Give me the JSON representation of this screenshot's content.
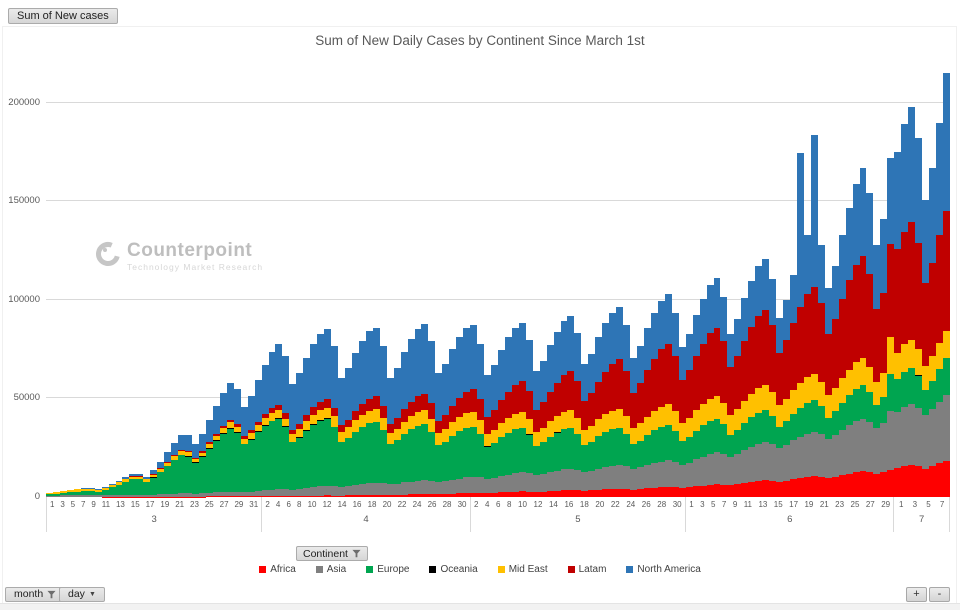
{
  "field_button_label": "Sum of New cases",
  "continent_button_label": "Continent",
  "month_button_label": "month",
  "day_button_label": "day",
  "zoom_in_label": "+",
  "zoom_out_label": "-",
  "watermark": {
    "name": "Counterpoint",
    "tagline": "Technology Market Research"
  },
  "chart_data": {
    "type": "bar",
    "stacked": true,
    "title": "Sum of New Daily Cases by Continent Since March 1st",
    "xlabel": "month / day",
    "ylabel": "Sum of New cases",
    "ylim": [
      0,
      218000
    ],
    "yticks": [
      0,
      50000,
      100000,
      150000,
      200000
    ],
    "grid": true,
    "legend_position": "bottom",
    "total_days": 130,
    "months": [
      {
        "label": "3",
        "days": 31,
        "tick_labels": [
          "1",
          "3",
          "5",
          "7",
          "9",
          "11",
          "13",
          "15",
          "17",
          "19",
          "21",
          "23",
          "25",
          "27",
          "29",
          "31"
        ]
      },
      {
        "label": "4",
        "days": 30,
        "tick_labels": [
          "2",
          "4",
          "6",
          "8",
          "10",
          "12",
          "14",
          "16",
          "18",
          "20",
          "22",
          "24",
          "26",
          "28",
          "30"
        ]
      },
      {
        "label": "5",
        "days": 31,
        "tick_labels": [
          "2",
          "4",
          "6",
          "8",
          "10",
          "12",
          "14",
          "16",
          "18",
          "20",
          "22",
          "24",
          "26",
          "28",
          "30"
        ]
      },
      {
        "label": "6",
        "days": 30,
        "tick_labels": [
          "1",
          "3",
          "5",
          "7",
          "9",
          "11",
          "13",
          "15",
          "17",
          "19",
          "21",
          "23",
          "25",
          "27",
          "29"
        ]
      },
      {
        "label": "7",
        "days": 8,
        "tick_labels": [
          "1",
          "3",
          "5",
          "7"
        ]
      }
    ],
    "series": [
      {
        "name": "Africa",
        "color": "#fe0000",
        "values": [
          18,
          22,
          26,
          30,
          33,
          36,
          37,
          36,
          46,
          57,
          68,
          78,
          89,
          91,
          90,
          114,
          141,
          169,
          197,
          222,
          229,
          225,
          248,
          276,
          302,
          326,
          344,
          336,
          315,
          356,
          403,
          449,
          492,
          527,
          521,
          495,
          551,
          615,
          677,
          734,
          780,
          764,
          720,
          792,
          877,
          957,
          1029,
          1085,
          1057,
          990,
          1088,
          1202,
          1309,
          1409,
          1483,
          1443,
          1350,
          1504,
          1683,
          1854,
          2014,
          2140,
          2100,
          2000,
          2100,
          2300,
          2500,
          2700,
          2800,
          2700,
          2500,
          2700,
          3000,
          3200,
          3400,
          3500,
          3400,
          3200,
          3400,
          3700,
          3900,
          4100,
          4300,
          4100,
          3800,
          4100,
          4400,
          4700,
          4900,
          5100,
          4900,
          4500,
          4900,
          5400,
          5800,
          6200,
          6500,
          6300,
          5900,
          6400,
          7000,
          7600,
          8100,
          8500,
          8200,
          7700,
          8300,
          9000,
          9600,
          10200,
          10600,
          10200,
          9500,
          10200,
          11100,
          11900,
          12600,
          13100,
          12600,
          11700,
          12600,
          13700,
          14700,
          15600,
          16200,
          15600,
          14400,
          15700,
          17200,
          18500
        ]
      },
      {
        "name": "Asia",
        "color": "#7f7f7f",
        "values": [
          630,
          690,
          750,
          810,
          860,
          900,
          870,
          810,
          870,
          950,
          1020,
          1080,
          1120,
          1070,
          990,
          1110,
          1260,
          1400,
          1530,
          1640,
          1610,
          1530,
          1690,
          1880,
          2060,
          2230,
          2350,
          2300,
          2160,
          2400,
          2690,
          2960,
          3210,
          3410,
          3340,
          3150,
          3490,
          3890,
          4270,
          4620,
          4890,
          4790,
          4500,
          4830,
          5230,
          5590,
          5910,
          6110,
          5860,
          5400,
          5750,
          6170,
          6530,
          6840,
          7030,
          6690,
          6100,
          6600,
          7100,
          7500,
          7900,
          8200,
          7800,
          7200,
          7700,
          8300,
          8900,
          9400,
          9700,
          9300,
          8600,
          9100,
          9700,
          10200,
          10700,
          10900,
          10400,
          9500,
          10000,
          10700,
          11300,
          11700,
          12000,
          11400,
          10400,
          11000,
          11800,
          12500,
          13100,
          13500,
          12800,
          11700,
          12600,
          13700,
          14700,
          15600,
          16200,
          15600,
          14400,
          15400,
          16700,
          17800,
          18800,
          19400,
          18600,
          17100,
          18300,
          19700,
          20900,
          22000,
          22600,
          21600,
          19800,
          21200,
          22900,
          24400,
          25700,
          26600,
          25400,
          23400,
          25000,
          29900,
          28500,
          30000,
          30900,
          29400,
          27000,
          28800,
          31000,
          33000
        ]
      },
      {
        "name": "Europe",
        "color": "#00a550",
        "values": [
          700,
          920,
          1220,
          1530,
          1840,
          2100,
          2050,
          1720,
          2640,
          3840,
          5150,
          6500,
          7700,
          7750,
          6630,
          8620,
          11300,
          14100,
          16900,
          19200,
          18700,
          15600,
          18300,
          22200,
          25900,
          29400,
          32000,
          30000,
          24200,
          26400,
          29800,
          32600,
          34700,
          35700,
          31600,
          24200,
          26100,
          29200,
          31700,
          33400,
          34000,
          29900,
          22600,
          24300,
          27000,
          29100,
          30600,
          30900,
          27000,
          20300,
          21900,
          24400,
          26400,
          27800,
          28300,
          24800,
          18700,
          20000,
          22200,
          23900,
          25000,
          25100,
          21900,
          16400,
          17600,
          19600,
          21200,
          22200,
          22500,
          19700,
          14800,
          16000,
          17800,
          19300,
          20300,
          20600,
          18100,
          13700,
          14700,
          16400,
          17700,
          18600,
          18900,
          16500,
          12500,
          13500,
          15200,
          16600,
          17600,
          18000,
          15900,
          12100,
          13100,
          14600,
          15800,
          16700,
          17000,
          14900,
          11300,
          12300,
          13800,
          15000,
          15900,
          16300,
          14400,
          10900,
          11900,
          13400,
          14700,
          15700,
          16100,
          14300,
          10900,
          12000,
          13700,
          15200,
          16300,
          16900,
          15200,
          11700,
          12900,
          18800,
          16400,
          17800,
          18500,
          16600,
          12900,
          14500,
          16800,
          18900
        ]
      },
      {
        "name": "Oceania",
        "color": "#000000",
        "values": [
          10,
          12,
          14,
          16,
          18,
          20,
          22,
          30,
          35,
          40,
          45,
          50,
          55,
          60,
          100,
          130,
          160,
          190,
          220,
          250,
          280,
          350,
          370,
          390,
          410,
          430,
          450,
          440,
          450,
          430,
          410,
          390,
          370,
          350,
          330,
          300,
          270,
          240,
          210,
          190,
          170,
          150,
          120,
          110,
          100,
          90,
          80,
          70,
          65,
          60,
          55,
          50,
          45,
          40,
          35,
          32,
          30,
          28,
          27,
          26,
          25,
          25,
          25,
          25,
          24,
          23,
          22,
          21,
          20,
          20,
          25,
          25,
          24,
          24,
          23,
          23,
          22,
          25,
          24,
          24,
          23,
          23,
          22,
          22,
          20,
          20,
          20,
          20,
          20,
          20,
          20,
          20,
          20,
          20,
          20,
          20,
          20,
          20,
          20,
          20,
          20,
          22,
          22,
          24,
          24,
          25,
          25,
          26,
          26,
          27,
          27,
          28,
          25,
          26,
          27,
          28,
          29,
          30,
          30,
          30,
          32,
          34,
          36,
          38,
          40,
          42,
          40,
          44,
          48,
          52
        ]
      },
      {
        "name": "Mid East",
        "color": "#ffc000",
        "values": [
          810,
          870,
          950,
          1020,
          1080,
          1120,
          1070,
          990,
          1060,
          1150,
          1220,
          1290,
          1330,
          1270,
          1170,
          1300,
          1460,
          1600,
          1740,
          1850,
          1810,
          1710,
          1910,
          2140,
          2350,
          2560,
          2720,
          2670,
          2520,
          2820,
          3170,
          3500,
          3820,
          4070,
          4000,
          3780,
          4120,
          4530,
          4900,
          5240,
          5490,
          5310,
          4950,
          5260,
          5640,
          5970,
          6250,
          6420,
          6100,
          5580,
          5910,
          6310,
          6650,
          6940,
          7090,
          6710,
          6100,
          6400,
          6800,
          7200,
          7500,
          7600,
          7100,
          6500,
          6800,
          7300,
          7700,
          8000,
          8200,
          7700,
          7000,
          7400,
          7900,
          8300,
          8700,
          8900,
          8400,
          7700,
          8100,
          8600,
          9100,
          9400,
          9600,
          9100,
          8300,
          8800,
          9300,
          9800,
          10200,
          10500,
          9900,
          9000,
          9500,
          10200,
          10700,
          11200,
          11500,
          10900,
          9900,
          10500,
          11200,
          11800,
          12300,
          12500,
          11900,
          10800,
          11300,
          12000,
          12600,
          13000,
          13200,
          12400,
          11300,
          11800,
          12500,
          13100,
          13600,
          13800,
          12900,
          11700,
          12200,
          18900,
          13500,
          13900,
          14100,
          13200,
          11900,
          12500,
          13300,
          13900
        ]
      },
      {
        "name": "Latam",
        "color": "#c00000",
        "values": [
          4,
          8,
          12,
          17,
          21,
          26,
          27,
          23,
          46,
          76,
          108,
          142,
          174,
          180,
          156,
          230,
          330,
          435,
          544,
          640,
          640,
          550,
          680,
          860,
          1050,
          1230,
          1380,
          1330,
          1090,
          1360,
          1730,
          2100,
          2460,
          2760,
          2650,
          2180,
          2590,
          3150,
          3710,
          4220,
          4620,
          4340,
          3510,
          4010,
          4730,
          5400,
          6000,
          6410,
          5900,
          4680,
          5340,
          6310,
          7200,
          8000,
          8540,
          7870,
          6200,
          7200,
          8500,
          9800,
          10900,
          11700,
          10800,
          8600,
          9800,
          11500,
          13100,
          14600,
          15500,
          14300,
          11300,
          12800,
          15000,
          17000,
          18800,
          20000,
          18300,
          14400,
          16300,
          19000,
          21500,
          23600,
          25000,
          22800,
          17900,
          20200,
          23500,
          26400,
          29000,
          30600,
          27800,
          21800,
          24200,
          27700,
          30800,
          33300,
          34700,
          31200,
          24200,
          26700,
          30600,
          33900,
          36600,
          38100,
          34200,
          26500,
          29600,
          34300,
          38400,
          41900,
          44000,
          39900,
          31200,
          34900,
          40300,
          45200,
          49300,
          51800,
          46900,
          36700,
          40800,
          47000,
          52500,
          57100,
          59800,
          54100,
          42100,
          47000,
          54400,
          60900
        ]
      },
      {
        "name": "North America",
        "color": "#2e75b6",
        "values": [
          62,
          94,
          137,
          183,
          231,
          273,
          274,
          234,
          365,
          535,
          720,
          912,
          1080,
          1090,
          940,
          1970,
          3290,
          4770,
          6340,
          7790,
          8040,
          7020,
          8870,
          11400,
          13950,
          16480,
          18560,
          17920,
          14800,
          17500,
          21300,
          24900,
          28300,
          30900,
          29000,
          23400,
          25600,
          29100,
          32000,
          34200,
          35300,
          31500,
          24200,
          26200,
          29500,
          32100,
          34100,
          34800,
          30700,
          23400,
          25600,
          29100,
          32000,
          34200,
          35300,
          31500,
          24200,
          25900,
          28700,
          30800,
          32200,
          32400,
          28100,
          21100,
          22700,
          25400,
          27500,
          29000,
          29400,
          25800,
          19500,
          21100,
          23700,
          25800,
          27400,
          27900,
          24600,
          18700,
          20200,
          22600,
          24500,
          25900,
          26400,
          23200,
          17600,
          19000,
          21300,
          23200,
          24600,
          25100,
          22100,
          16800,
          18300,
          20800,
          22800,
          24400,
          25100,
          22400,
          17200,
          18800,
          21400,
          23600,
          25300,
          26100,
          23300,
          17900,
          20400,
          24000,
          78000,
          30200,
          77000,
          29600,
          23400,
          27000,
          32100,
          36900,
          41300,
          44400,
          41100,
          32800,
          37200,
          43600,
          49500,
          54700,
          58200,
          53300,
          42100,
          48200,
          57000,
          70000
        ]
      }
    ]
  }
}
